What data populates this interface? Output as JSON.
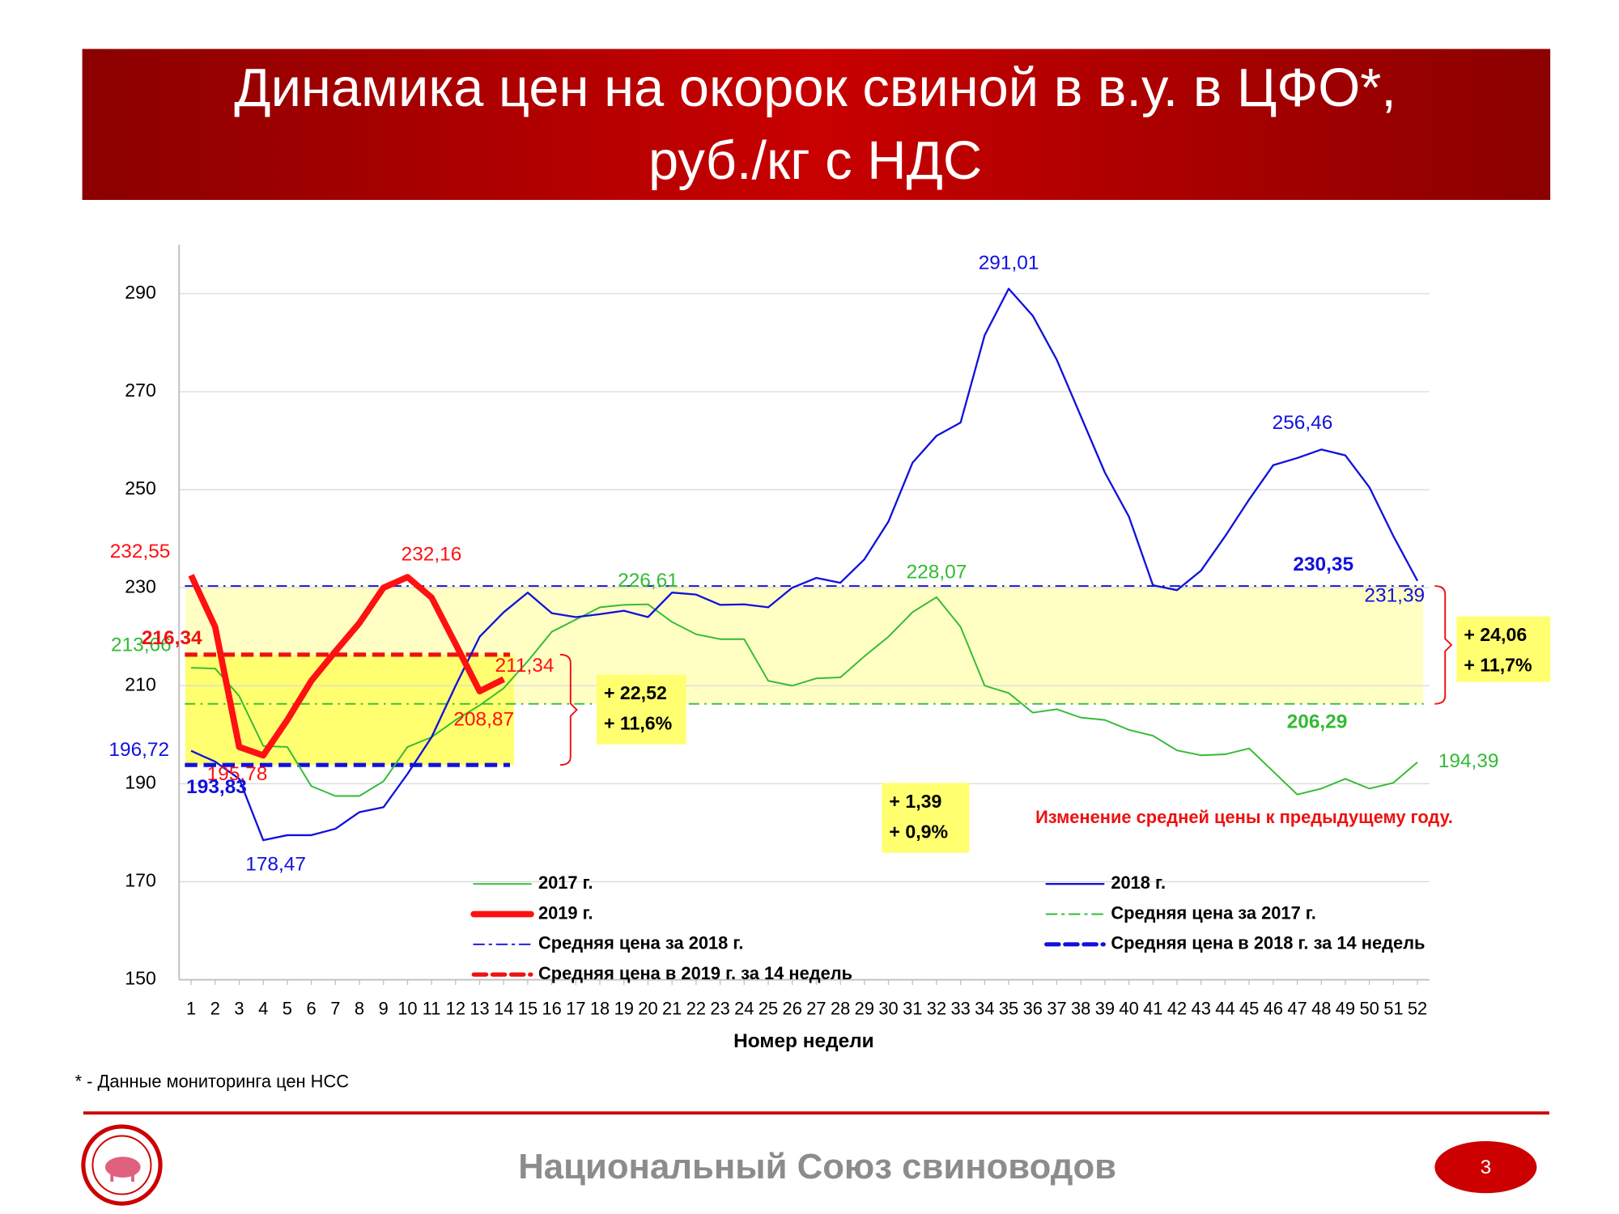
{
  "title_lines": [
    "Динамика цен на окорок свиной в в.у. в ЦФО*,",
    "руб./кг с НДС"
  ],
  "chart_data": {
    "type": "line",
    "x": [
      1,
      2,
      3,
      4,
      5,
      6,
      7,
      8,
      9,
      10,
      11,
      12,
      13,
      14,
      15,
      16,
      17,
      18,
      19,
      20,
      21,
      22,
      23,
      24,
      25,
      26,
      27,
      28,
      29,
      30,
      31,
      32,
      33,
      34,
      35,
      36,
      37,
      38,
      39,
      40,
      41,
      42,
      43,
      44,
      45,
      46,
      47,
      48,
      49,
      50,
      51,
      52
    ],
    "xlim": [
      0.5,
      52.5
    ],
    "ylim": [
      150,
      300
    ],
    "yticks": [
      150,
      170,
      190,
      210,
      230,
      250,
      270,
      290
    ],
    "grid": true,
    "x_label": "Номер недели",
    "series": [
      {
        "name": "2017 г.",
        "color": "#33bb33",
        "width": 1.5,
        "values": [
          213.66,
          213.5,
          207.9,
          197.7,
          197.5,
          189.5,
          187.5,
          187.5,
          190.5,
          197.5,
          199.5,
          203,
          206,
          209.5,
          215,
          221,
          223.5,
          226,
          226.5,
          226.61,
          223,
          220.5,
          219.5,
          219.5,
          211,
          210,
          211.5,
          211.7,
          216,
          220,
          225,
          228.07,
          222,
          210,
          208.5,
          204.5,
          205.2,
          203.5,
          203,
          201,
          199.8,
          196.8,
          195.8,
          196,
          197.2,
          192.5,
          187.8,
          189,
          191,
          189,
          190.2,
          194.39
        ],
        "value_labels": [
          "213,66",
          null,
          null,
          null,
          null,
          null,
          null,
          null,
          null,
          null,
          null,
          null,
          null,
          null,
          null,
          null,
          null,
          null,
          null,
          "226,61",
          null,
          null,
          null,
          null,
          null,
          null,
          null,
          null,
          null,
          null,
          null,
          "228,07",
          null,
          null,
          null,
          null,
          null,
          null,
          null,
          null,
          null,
          null,
          null,
          null,
          null,
          null,
          null,
          null,
          null,
          null,
          null,
          "194,39"
        ]
      },
      {
        "name": "2018 г.",
        "color": "#1111dd",
        "width": 1.8,
        "values": [
          196.72,
          194.5,
          191,
          178.47,
          179.5,
          179.5,
          180.8,
          184.2,
          185.2,
          192,
          199.5,
          210,
          220,
          225,
          229,
          224.8,
          224,
          224.6,
          225.3,
          224,
          229,
          228.6,
          226.5,
          226.6,
          226,
          230,
          232,
          231,
          235.8,
          243.5,
          255.5,
          261,
          263.7,
          281.5,
          291.01,
          285.5,
          276.5,
          265,
          253.5,
          244.5,
          230.5,
          229.5,
          233.5,
          240.5,
          248,
          255,
          256.46,
          258.2,
          257,
          250.5,
          240.5,
          231.39
        ],
        "value_labels": [
          "196,72",
          null,
          null,
          "178,47",
          null,
          null,
          null,
          null,
          null,
          null,
          null,
          null,
          null,
          null,
          null,
          null,
          null,
          null,
          null,
          null,
          null,
          null,
          null,
          null,
          null,
          null,
          null,
          null,
          null,
          null,
          null,
          null,
          null,
          null,
          "291,01",
          null,
          null,
          null,
          null,
          null,
          null,
          null,
          null,
          null,
          null,
          null,
          "256,46",
          null,
          null,
          null,
          null,
          "231,39"
        ]
      },
      {
        "name": "2019 г.",
        "color": "#ff1111",
        "width": 6,
        "values": [
          232.55,
          222,
          197.5,
          195.78,
          203,
          211,
          217,
          222.8,
          230,
          232.16,
          228,
          218.5,
          208.87,
          211.34,
          null,
          null,
          null,
          null,
          null,
          null,
          null,
          null,
          null,
          null,
          null,
          null,
          null,
          null,
          null,
          null,
          null,
          null,
          null,
          null,
          null,
          null,
          null,
          null,
          null,
          null,
          null,
          null,
          null,
          null,
          null,
          null,
          null,
          null,
          null,
          null,
          null,
          null
        ],
        "value_labels": [
          "232,55",
          null,
          null,
          "195,78",
          null,
          null,
          null,
          null,
          null,
          "232,16",
          null,
          null,
          "208,87",
          "211,34",
          null,
          null,
          null,
          null,
          null,
          null,
          null,
          null,
          null,
          null,
          null,
          null,
          null,
          null,
          null,
          null,
          null,
          null,
          null,
          null,
          null,
          null,
          null,
          null,
          null,
          null,
          null,
          null,
          null,
          null,
          null,
          null,
          null,
          null,
          null,
          null,
          null,
          null
        ]
      }
    ],
    "reference_lines": [
      {
        "name": "Средняя цена за 2017 г.",
        "color": "#33bb33",
        "style": "dash-dot",
        "width": 1.5,
        "value": 206.29,
        "value_label": "206,29",
        "weeks": [
          1,
          52
        ]
      },
      {
        "name": "Средняя цена за 2018 г.",
        "color": "#1111dd",
        "style": "dash-dot",
        "width": 1.5,
        "value": 230.35,
        "value_label": "230,35",
        "weeks": [
          1,
          52
        ]
      },
      {
        "name": "Средняя цена в 2018 г. за 14 недель",
        "color": "#1111dd",
        "style": "dashed",
        "width": 4,
        "value": 193.83,
        "value_label": "193,83",
        "weeks": [
          1,
          14
        ]
      },
      {
        "name": "Средняя цена в 2019 г. за 14 недель",
        "color": "#ee1111",
        "style": "dashed",
        "width": 4,
        "value": 216.34,
        "value_label": "216,34",
        "weeks": [
          1,
          14
        ]
      }
    ],
    "annotations": [
      {
        "lines": [
          "+ 22,52",
          "+ 11,6%"
        ]
      },
      {
        "lines": [
          "+ 1,39",
          "+ 0,9%"
        ]
      },
      {
        "lines": [
          "+ 24,06",
          "+ 11,7%"
        ]
      }
    ],
    "note": "Изменение средней цены к предыдущему году."
  },
  "footnote": "* - Данные мониторинга цен НСС",
  "footer": {
    "organization": "Национальный Союз свиноводов",
    "page": "3"
  }
}
